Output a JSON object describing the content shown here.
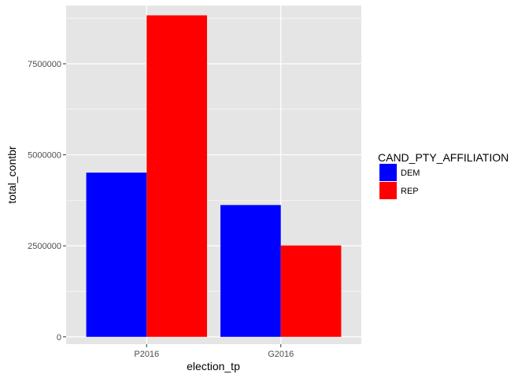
{
  "chart_data": {
    "type": "bar",
    "xlabel": "election_tp",
    "ylabel": "total_contbr",
    "categories": [
      "P2016",
      "G2016"
    ],
    "series": [
      {
        "name": "DEM",
        "values": [
          4510000,
          3620000
        ],
        "color": "#0000ff"
      },
      {
        "name": "REP",
        "values": [
          8830000,
          2510000
        ],
        "color": "#ff0000"
      }
    ],
    "ylim": [
      -200000,
      9100000
    ],
    "yticks": [
      0,
      2500000,
      5000000,
      7500000
    ],
    "ytick_labels": [
      "0",
      "2500000",
      "5000000",
      "7500000"
    ],
    "grid": true,
    "legend": {
      "title": "CAND_PTY_AFFILIATION",
      "position": "right"
    },
    "panel_background": "#e5e5e5",
    "grid_color": "#ffffff"
  }
}
